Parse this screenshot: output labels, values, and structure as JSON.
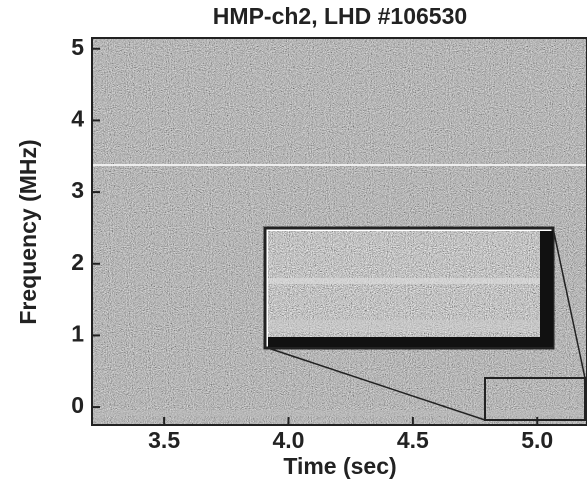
{
  "chart_data": {
    "type": "spectrogram",
    "title": "HMP-ch2, LHD #106530",
    "x_label": "Time (sec)",
    "y_label": "Frequency (MHz)",
    "xlim": [
      3.21,
      5.2
    ],
    "xticks": [
      3.5,
      {
        "value": 4,
        "label": "4.0"
      },
      4.5,
      {
        "value": 5,
        "label": "5.0"
      }
    ],
    "ylim": [
      -0.25,
      5.15
    ],
    "yticks": [
      0,
      1,
      2,
      3,
      4,
      5
    ]
  }
}
